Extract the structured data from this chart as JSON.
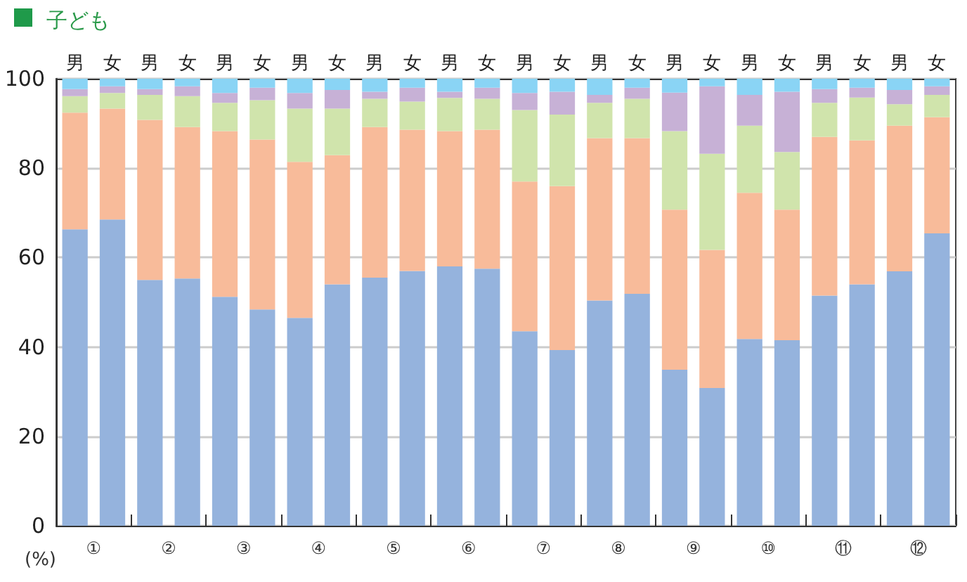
{
  "chart_data": {
    "type": "bar",
    "stacked": true,
    "title": "子ども",
    "ylabel": "(%)",
    "categories": [
      "男",
      "女",
      "男",
      "女",
      "男",
      "女",
      "男",
      "女",
      "男",
      "女",
      "男",
      "女",
      "男",
      "女",
      "男",
      "女",
      "男",
      "女",
      "男",
      "女",
      "男",
      "女",
      "男",
      "女"
    ],
    "annotations": [
      "①",
      "②",
      "③",
      "④",
      "⑤",
      "⑥",
      "⑦",
      "⑧",
      "⑨",
      "⑩",
      "⑪",
      "⑫"
    ],
    "series": [
      {
        "color": "#95b3dd",
        "values": [
          66.3,
          68.5,
          55,
          55.3,
          51.2,
          48.4,
          46.5,
          54,
          55.5,
          57,
          58,
          57.5,
          43.5,
          39.3,
          50.4,
          51.9,
          34.9,
          30.8,
          41.8,
          41.5,
          51.5,
          54,
          56.9,
          65.4
        ]
      },
      {
        "color": "#f8bb9a",
        "values": [
          26.1,
          24.8,
          35.8,
          33.9,
          37.1,
          38,
          34.9,
          28.9,
          33.7,
          31.6,
          30.3,
          31.1,
          33.5,
          36.7,
          36.3,
          34.8,
          35.8,
          30.9,
          32.7,
          29.2,
          35.5,
          32.2,
          32.6,
          26
        ]
      },
      {
        "color": "#d0e4ac",
        "values": [
          3.7,
          3.5,
          5.6,
          6.9,
          6.3,
          8.8,
          11.9,
          10.4,
          6.3,
          6.3,
          7.4,
          6.9,
          16,
          16,
          7.9,
          8.8,
          17.6,
          21.5,
          15,
          12.9,
          7.6,
          9.6,
          4.8,
          5
        ]
      },
      {
        "color": "#c7b1d6",
        "values": [
          1.6,
          1.5,
          1.3,
          2.2,
          2.2,
          2.8,
          3.5,
          4.2,
          1.6,
          3.1,
          1.4,
          2.5,
          3.8,
          5.1,
          1.8,
          2.5,
          8.6,
          15.1,
          6.9,
          13.5,
          3.1,
          2.2,
          3.2,
          1.9
        ]
      },
      {
        "color": "#8ad4f5",
        "values": [
          2.3,
          1.7,
          2.3,
          1.7,
          3.2,
          2,
          3.2,
          2.5,
          2.9,
          2,
          2.9,
          2,
          3.2,
          2.9,
          3.6,
          2,
          3.1,
          1.7,
          3.6,
          2.9,
          2.3,
          2,
          2.5,
          1.7
        ]
      }
    ],
    "ylim": [
      0,
      100
    ],
    "yticks": [
      0,
      20,
      40,
      60,
      80,
      100
    ],
    "grid": "y"
  }
}
